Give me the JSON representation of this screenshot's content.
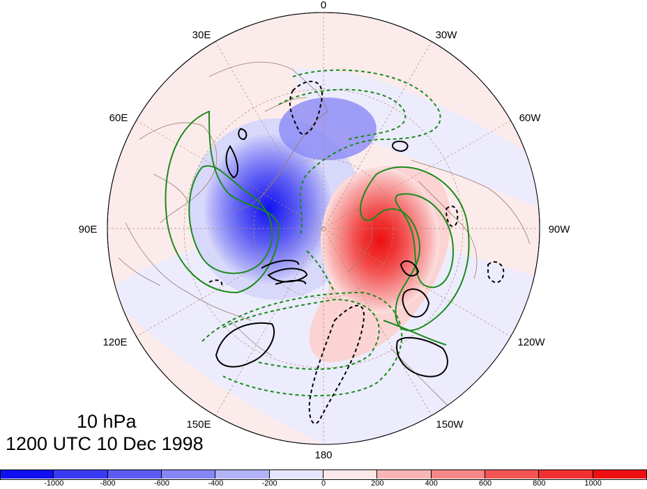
{
  "title": {
    "level": "10 hPa",
    "time": "1200 UTC 10 Dec 1998"
  },
  "map": {
    "projection": "north-polar-stereographic",
    "pole_center_longitude_top": "0",
    "longitude_labels": [
      "0",
      "30W",
      "60W",
      "90W",
      "120W",
      "150W",
      "180",
      "150E",
      "120E",
      "90E",
      "60E",
      "30E"
    ]
  },
  "colorbar": {
    "tick_labels": [
      "-1000",
      "-800",
      "-600",
      "-400",
      "-200",
      "0",
      "200",
      "400",
      "600",
      "800",
      "1000"
    ],
    "colors": [
      "#1010f0",
      "#3a3af2",
      "#5c5cf4",
      "#8585f6",
      "#b3b3f9",
      "#e6e6fc",
      "#fce8e8",
      "#f9b5b5",
      "#f68585",
      "#f35555",
      "#f03030",
      "#ee1010"
    ]
  },
  "contours": {
    "positive_color": "#1a8a1a",
    "negative_color": "#000000"
  }
}
